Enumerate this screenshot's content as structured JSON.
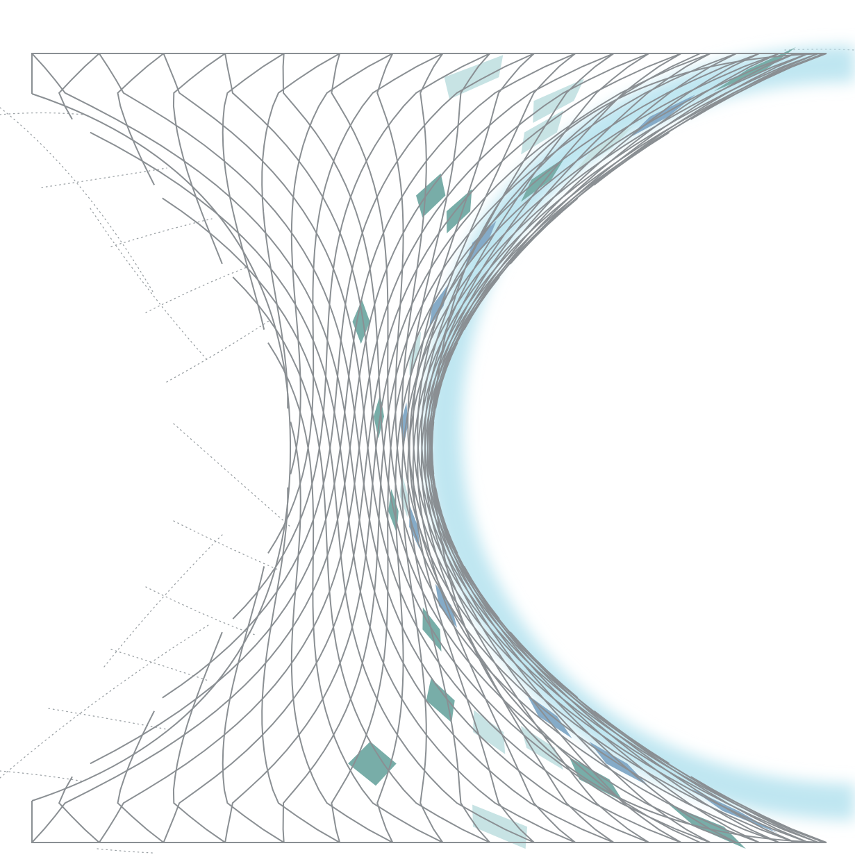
{
  "figure": {
    "colors": {
      "background": "#ffffff",
      "grid_line": "#8a8f93",
      "dotted_line": "#9aa0a4",
      "cell_dark_teal": "#78ada8",
      "cell_light_teal": "#c7e3e4",
      "cell_blue": "#85abc8",
      "glow": "#bfe6f1"
    }
  }
}
